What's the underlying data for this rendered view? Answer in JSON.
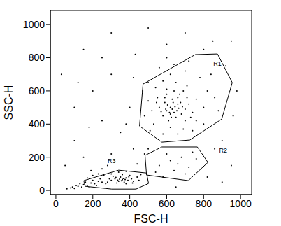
{
  "chart_data": {
    "type": "scatter",
    "x_label": "FSC-H",
    "y_label": "SSC-H",
    "xlim": [
      -30,
      1060
    ],
    "ylim": [
      -25,
      1085
    ],
    "xticks": [
      0,
      200,
      400,
      600,
      800,
      1000
    ],
    "yticks": [
      0,
      200,
      400,
      600,
      800,
      1000
    ],
    "color": "#000000",
    "marker": "dot",
    "points": [
      [
        600,
        480
      ],
      [
        620,
        500
      ],
      [
        640,
        470
      ],
      [
        660,
        520
      ],
      [
        580,
        450
      ],
      [
        700,
        490
      ],
      [
        650,
        440
      ],
      [
        630,
        550
      ],
      [
        610,
        420
      ],
      [
        680,
        460
      ],
      [
        560,
        500
      ],
      [
        590,
        530
      ],
      [
        720,
        520
      ],
      [
        670,
        580
      ],
      [
        640,
        600
      ],
      [
        600,
        610
      ],
      [
        550,
        560
      ],
      [
        520,
        480
      ],
      [
        700,
        420
      ],
      [
        740,
        470
      ],
      [
        760,
        550
      ],
      [
        710,
        630
      ],
      [
        650,
        650
      ],
      [
        580,
        660
      ],
      [
        540,
        620
      ],
      [
        500,
        540
      ],
      [
        480,
        450
      ],
      [
        530,
        400
      ],
      [
        620,
        380
      ],
      [
        690,
        370
      ],
      [
        760,
        420
      ],
      [
        800,
        500
      ],
      [
        820,
        600
      ],
      [
        780,
        680
      ],
      [
        700,
        720
      ],
      [
        620,
        700
      ],
      [
        560,
        740
      ],
      [
        640,
        760
      ],
      [
        720,
        780
      ],
      [
        600,
        800
      ],
      [
        840,
        700
      ],
      [
        860,
        560
      ],
      [
        880,
        480
      ],
      [
        500,
        650
      ],
      [
        470,
        600
      ],
      [
        510,
        360
      ],
      [
        580,
        340
      ],
      [
        660,
        340
      ],
      [
        740,
        360
      ],
      [
        800,
        400
      ],
      [
        620,
        460
      ],
      [
        630,
        490
      ],
      [
        645,
        505
      ],
      [
        655,
        480
      ],
      [
        615,
        470
      ],
      [
        605,
        515
      ],
      [
        665,
        495
      ],
      [
        675,
        530
      ],
      [
        595,
        490
      ],
      [
        635,
        530
      ],
      [
        625,
        440
      ],
      [
        685,
        505
      ],
      [
        570,
        475
      ],
      [
        590,
        560
      ],
      [
        710,
        560
      ],
      [
        730,
        440
      ],
      [
        545,
        530
      ],
      [
        600,
        580
      ],
      [
        660,
        560
      ],
      [
        690,
        600
      ],
      [
        560,
        150
      ],
      [
        620,
        180
      ],
      [
        680,
        200
      ],
      [
        720,
        140
      ],
      [
        640,
        120
      ],
      [
        600,
        220
      ],
      [
        700,
        100
      ],
      [
        540,
        110
      ],
      [
        660,
        160
      ],
      [
        760,
        190
      ],
      [
        580,
        80
      ],
      [
        740,
        230
      ],
      [
        300,
        60
      ],
      [
        320,
        70
      ],
      [
        340,
        55
      ],
      [
        360,
        65
      ],
      [
        380,
        75
      ],
      [
        350,
        80
      ],
      [
        330,
        45
      ],
      [
        370,
        50
      ],
      [
        390,
        60
      ],
      [
        410,
        70
      ],
      [
        400,
        90
      ],
      [
        360,
        95
      ],
      [
        310,
        85
      ],
      [
        280,
        50
      ],
      [
        420,
        55
      ],
      [
        440,
        80
      ],
      [
        380,
        40
      ],
      [
        345,
        68
      ],
      [
        365,
        72
      ],
      [
        335,
        62
      ],
      [
        355,
        58
      ],
      [
        375,
        66
      ],
      [
        325,
        78
      ],
      [
        395,
        82
      ],
      [
        415,
        45
      ],
      [
        290,
        70
      ],
      [
        270,
        40
      ],
      [
        450,
        60
      ],
      [
        460,
        95
      ],
      [
        300,
        100
      ],
      [
        340,
        110
      ],
      [
        380,
        115
      ],
      [
        60,
        10
      ],
      [
        80,
        15
      ],
      [
        90,
        20
      ],
      [
        100,
        12
      ],
      [
        120,
        25
      ],
      [
        140,
        20
      ],
      [
        150,
        35
      ],
      [
        170,
        30
      ],
      [
        190,
        45
      ],
      [
        210,
        40
      ],
      [
        230,
        55
      ],
      [
        250,
        50
      ],
      [
        240,
        70
      ],
      [
        220,
        30
      ],
      [
        200,
        60
      ],
      [
        180,
        20
      ],
      [
        160,
        50
      ],
      [
        130,
        40
      ],
      [
        110,
        30
      ],
      [
        260,
        90
      ],
      [
        230,
        100
      ],
      [
        200,
        90
      ],
      [
        170,
        75
      ],
      [
        250,
        130
      ],
      [
        280,
        150
      ],
      [
        190,
        120
      ],
      [
        150,
        200
      ],
      [
        300,
        220
      ],
      [
        420,
        250
      ],
      [
        100,
        300
      ],
      [
        350,
        350
      ],
      [
        250,
        420
      ],
      [
        400,
        500
      ],
      [
        200,
        600
      ],
      [
        300,
        700
      ],
      [
        430,
        820
      ],
      [
        150,
        850
      ],
      [
        950,
        900
      ],
      [
        900,
        300
      ],
      [
        950,
        150
      ],
      [
        850,
        900
      ],
      [
        700,
        950
      ],
      [
        500,
        980
      ],
      [
        300,
        950
      ],
      [
        980,
        600
      ],
      [
        920,
        750
      ],
      [
        100,
        500
      ],
      [
        50,
        150
      ],
      [
        440,
        160
      ],
      [
        480,
        220
      ],
      [
        860,
        250
      ],
      [
        820,
        80
      ],
      [
        900,
        50
      ],
      [
        650,
        20
      ],
      [
        500,
        250
      ],
      [
        420,
        680
      ],
      [
        380,
        400
      ],
      [
        800,
        850
      ],
      [
        600,
        880
      ],
      [
        250,
        800
      ],
      [
        960,
        450
      ],
      [
        30,
        700
      ],
      [
        180,
        380
      ],
      [
        120,
        650
      ]
    ],
    "gates": [
      {
        "name": "R1",
        "color": "#000000",
        "label_at": [
          875,
          760
        ],
        "vertices": [
          [
            472,
            641
          ],
          [
            755,
            819
          ],
          [
            875,
            823
          ],
          [
            955,
            650
          ],
          [
            898,
            430
          ],
          [
            725,
            304
          ],
          [
            574,
            291
          ],
          [
            453,
            388
          ]
        ]
      },
      {
        "name": "R2",
        "color": "#000000",
        "label_at": [
          906,
          240
        ],
        "vertices": [
          [
            483,
            211
          ],
          [
            574,
            262
          ],
          [
            766,
            262
          ],
          [
            823,
            169
          ],
          [
            717,
            59
          ],
          [
            491,
            93
          ]
        ]
      },
      {
        "name": "R3",
        "color": "#000000",
        "label_at": [
          302,
          177
        ],
        "vertices": [
          [
            151,
            59
          ],
          [
            340,
            122
          ],
          [
            491,
            105
          ],
          [
            502,
            42
          ],
          [
            434,
            8
          ],
          [
            302,
            8
          ],
          [
            158,
            25
          ]
        ]
      }
    ]
  }
}
